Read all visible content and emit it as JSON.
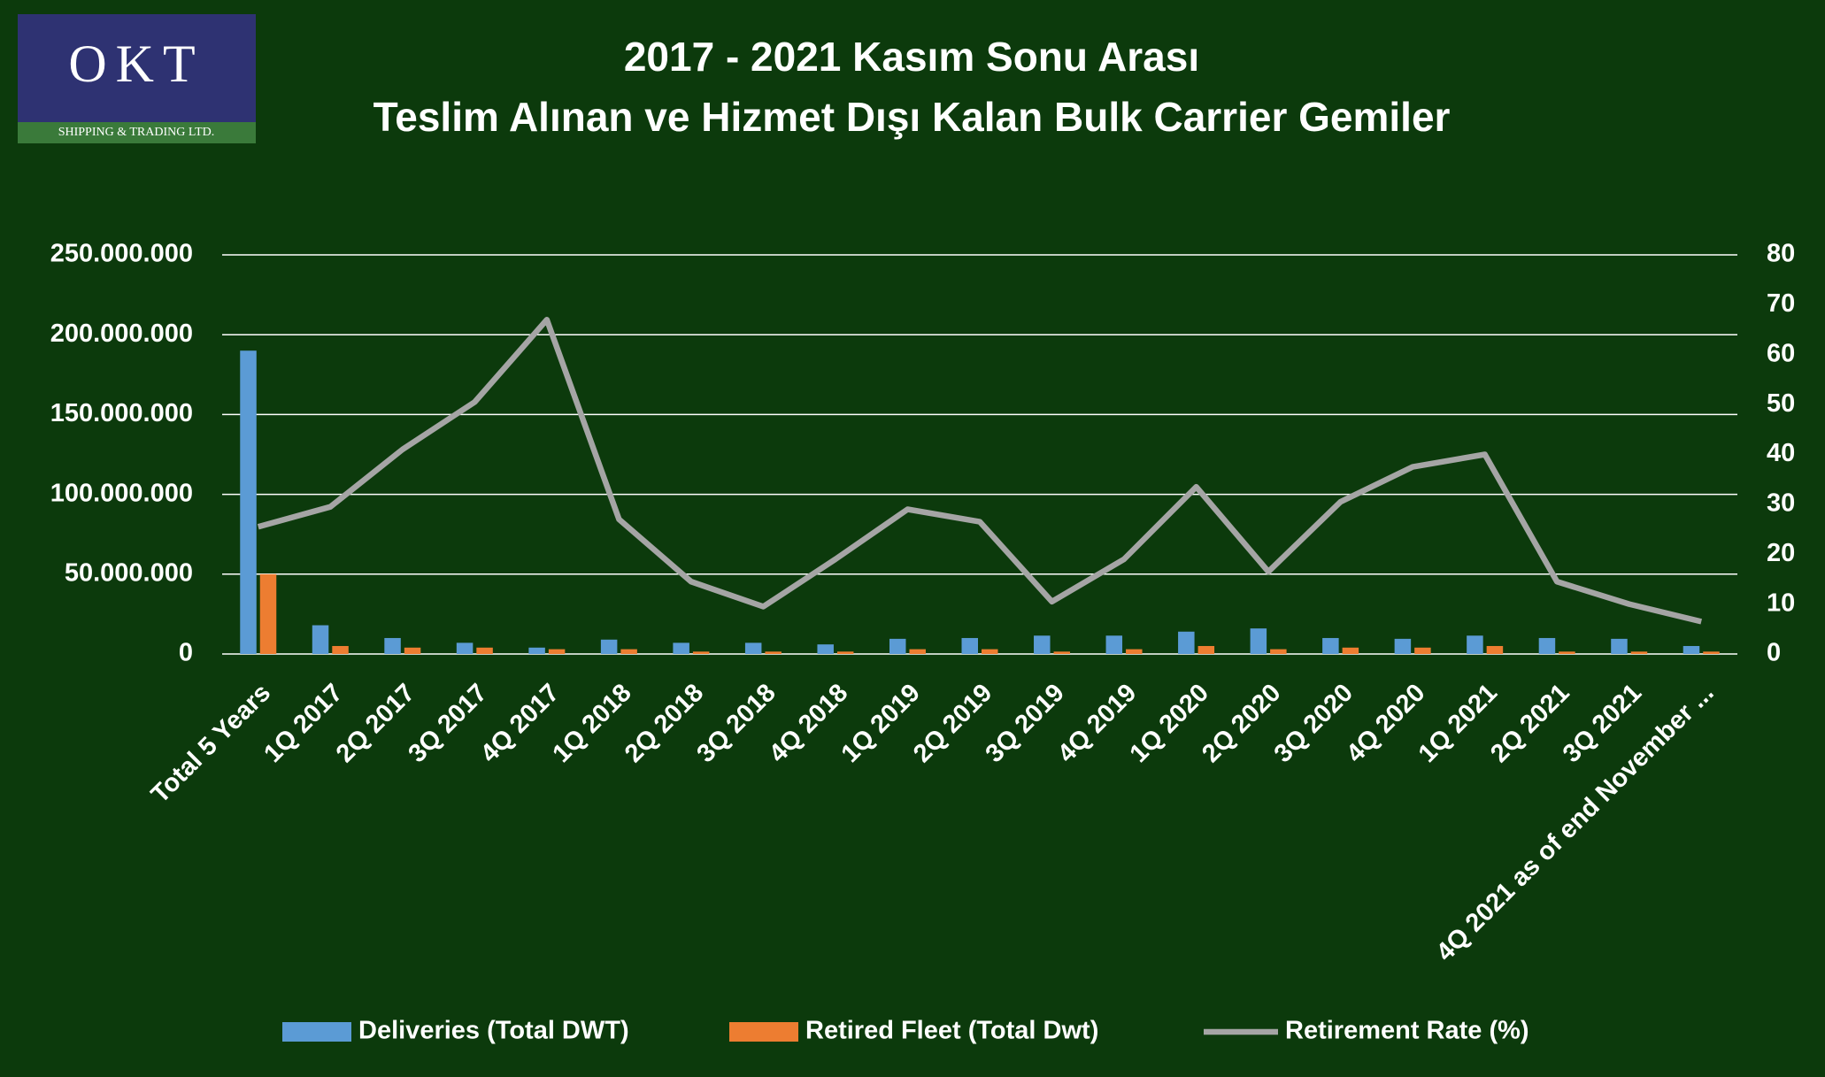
{
  "logo": {
    "mark": "OKT",
    "tagline": "SHIPPING & TRADING LTD."
  },
  "chart_data": {
    "type": "bar",
    "title": "2017 - 2021 Kasım Sonu Arası",
    "subtitle": "Teslim Alınan ve Hizmet Dışı Kalan Bulk Carrier Gemiler",
    "categories": [
      "Total 5 Years",
      "1Q 2017",
      "2Q 2017",
      "3Q 2017",
      "4Q 2017",
      "1Q 2018",
      "2Q 2018",
      "3Q 2018",
      "4Q 2018",
      "1Q 2019",
      "2Q 2019",
      "3Q 2019",
      "4Q 2019",
      "1Q 2020",
      "2Q 2020",
      "3Q 2020",
      "4Q 2020",
      "1Q 2021",
      "2Q 2021",
      "3Q 2021",
      "4Q 2021 as of end November ..."
    ],
    "series": [
      {
        "name": "Deliveries (Total DWT)",
        "type": "bar",
        "color": "#5b9bd5",
        "values": [
          190000000,
          18000000,
          10000000,
          7000000,
          4000000,
          9000000,
          7000000,
          7000000,
          6000000,
          9500000,
          10000000,
          11500000,
          11500000,
          14000000,
          16000000,
          10000000,
          9500000,
          11500000,
          10000000,
          9500000,
          5000000
        ]
      },
      {
        "name": "Retired Fleet (Total Dwt)",
        "type": "bar",
        "color": "#ed7d31",
        "values": [
          50000000,
          5000000,
          4000000,
          4000000,
          3000000,
          3000000,
          1500000,
          1500000,
          1500000,
          3000000,
          3000000,
          1500000,
          3000000,
          5000000,
          3000000,
          4000000,
          4000000,
          5000000,
          1500000,
          1500000,
          1500000
        ]
      },
      {
        "name": "Retirement Rate (%)",
        "type": "line",
        "axis": "y2",
        "color": "#a5a5a5",
        "values": [
          25.5,
          29.5,
          41,
          50.5,
          67,
          27,
          14.5,
          9.5,
          19,
          29,
          26.5,
          10.5,
          19,
          33.5,
          16.5,
          30.5,
          37.5,
          40,
          14.5,
          10,
          6.5
        ]
      }
    ],
    "ylim": [
      0,
      250000000
    ],
    "yticks": [
      0,
      {
        "value": 50000000,
        "label": "50.000.000"
      },
      {
        "value": 100000000,
        "label": "100.000.000"
      },
      {
        "value": 150000000,
        "label": "150.000.000"
      },
      {
        "value": 200000000,
        "label": "200.000.000"
      },
      {
        "value": 250000000,
        "label": "250.000.000"
      }
    ],
    "y2lim": [
      0,
      80
    ],
    "y2ticks": [
      0,
      10,
      20,
      30,
      40,
      50,
      60,
      70,
      80
    ],
    "grid": true,
    "legend": "bottom"
  }
}
